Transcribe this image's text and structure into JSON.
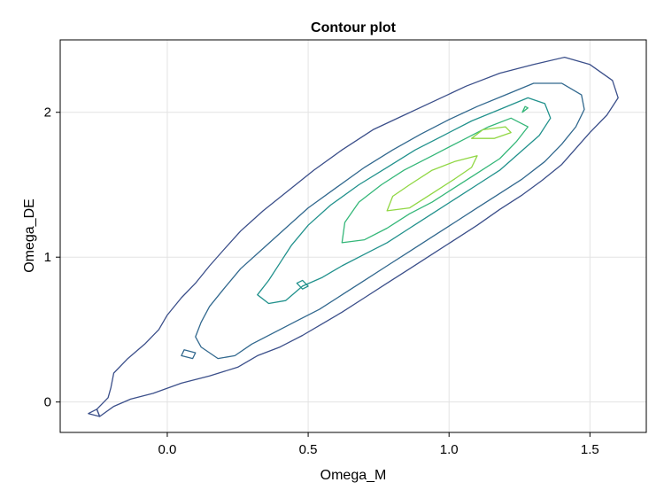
{
  "chart_data": {
    "type": "contour",
    "title": "Contour plot",
    "xlabel": "Omega_M",
    "ylabel": "Omega_DE",
    "xlim": [
      -0.38,
      1.7
    ],
    "ylim": [
      -0.21,
      2.5
    ],
    "xticks": [
      0.0,
      0.5,
      1.0,
      1.5
    ],
    "yticks": [
      0,
      1,
      2
    ],
    "xtick_labels": [
      "0.0",
      "0.5",
      "1.0",
      "1.5"
    ],
    "ytick_labels": [
      "0",
      "1",
      "2"
    ],
    "grid": true,
    "colors": [
      "#3b4f8a",
      "#31688e",
      "#21918c",
      "#35b779",
      "#90d743"
    ],
    "levels": [
      {
        "color": "#3b4f8a",
        "paths": [
          {
            "closed": true,
            "points": [
              [
                -0.24,
                -0.1
              ],
              [
                -0.19,
                -0.03
              ],
              [
                -0.13,
                0.02
              ],
              [
                -0.05,
                0.06
              ],
              [
                0.05,
                0.13
              ],
              [
                0.15,
                0.18
              ],
              [
                0.25,
                0.24
              ],
              [
                0.32,
                0.32
              ],
              [
                0.4,
                0.38
              ],
              [
                0.48,
                0.46
              ],
              [
                0.55,
                0.54
              ],
              [
                0.62,
                0.62
              ],
              [
                0.7,
                0.72
              ],
              [
                0.78,
                0.82
              ],
              [
                0.86,
                0.92
              ],
              [
                0.94,
                1.02
              ],
              [
                1.02,
                1.12
              ],
              [
                1.1,
                1.22
              ],
              [
                1.18,
                1.33
              ],
              [
                1.26,
                1.43
              ],
              [
                1.33,
                1.53
              ],
              [
                1.4,
                1.64
              ],
              [
                1.45,
                1.75
              ],
              [
                1.5,
                1.86
              ],
              [
                1.56,
                1.98
              ],
              [
                1.6,
                2.1
              ],
              [
                1.58,
                2.22
              ],
              [
                1.5,
                2.33
              ],
              [
                1.41,
                2.38
              ],
              [
                1.3,
                2.33
              ],
              [
                1.18,
                2.27
              ],
              [
                1.06,
                2.18
              ],
              [
                0.95,
                2.08
              ],
              [
                0.84,
                1.98
              ],
              [
                0.73,
                1.88
              ],
              [
                0.62,
                1.74
              ],
              [
                0.52,
                1.6
              ],
              [
                0.43,
                1.46
              ],
              [
                0.34,
                1.32
              ],
              [
                0.26,
                1.18
              ],
              [
                0.2,
                1.05
              ],
              [
                0.15,
                0.94
              ],
              [
                0.1,
                0.82
              ],
              [
                0.05,
                0.72
              ],
              [
                0.0,
                0.6
              ],
              [
                -0.03,
                0.5
              ],
              [
                -0.08,
                0.4
              ],
              [
                -0.14,
                0.3
              ],
              [
                -0.19,
                0.2
              ],
              [
                -0.2,
                0.1
              ],
              [
                -0.21,
                0.03
              ],
              [
                -0.25,
                -0.05
              ]
            ]
          },
          {
            "closed": true,
            "points": [
              [
                -0.28,
                -0.08
              ],
              [
                -0.25,
                -0.05
              ],
              [
                -0.24,
                -0.1
              ]
            ]
          }
        ]
      },
      {
        "color": "#31688e",
        "paths": [
          {
            "closed": true,
            "points": [
              [
                0.12,
                0.38
              ],
              [
                0.18,
                0.3
              ],
              [
                0.24,
                0.32
              ],
              [
                0.3,
                0.4
              ],
              [
                0.38,
                0.48
              ],
              [
                0.46,
                0.56
              ],
              [
                0.54,
                0.64
              ],
              [
                0.62,
                0.74
              ],
              [
                0.7,
                0.84
              ],
              [
                0.78,
                0.94
              ],
              [
                0.86,
                1.04
              ],
              [
                0.94,
                1.14
              ],
              [
                1.02,
                1.24
              ],
              [
                1.1,
                1.34
              ],
              [
                1.18,
                1.44
              ],
              [
                1.26,
                1.54
              ],
              [
                1.34,
                1.66
              ],
              [
                1.4,
                1.78
              ],
              [
                1.45,
                1.9
              ],
              [
                1.48,
                2.02
              ],
              [
                1.47,
                2.12
              ],
              [
                1.4,
                2.2
              ],
              [
                1.3,
                2.2
              ],
              [
                1.2,
                2.12
              ],
              [
                1.1,
                2.04
              ],
              [
                1.0,
                1.95
              ],
              [
                0.9,
                1.85
              ],
              [
                0.8,
                1.74
              ],
              [
                0.7,
                1.62
              ],
              [
                0.6,
                1.48
              ],
              [
                0.5,
                1.34
              ],
              [
                0.42,
                1.2
              ],
              [
                0.34,
                1.06
              ],
              [
                0.26,
                0.92
              ],
              [
                0.2,
                0.78
              ],
              [
                0.15,
                0.66
              ],
              [
                0.12,
                0.55
              ],
              [
                0.1,
                0.45
              ]
            ]
          },
          {
            "closed": true,
            "points": [
              [
                0.05,
                0.32
              ],
              [
                0.09,
                0.3
              ],
              [
                0.1,
                0.34
              ],
              [
                0.06,
                0.36
              ]
            ]
          }
        ]
      },
      {
        "color": "#21918c",
        "paths": [
          {
            "closed": true,
            "points": [
              [
                0.32,
                0.74
              ],
              [
                0.36,
                0.68
              ],
              [
                0.42,
                0.7
              ],
              [
                0.48,
                0.8
              ],
              [
                0.55,
                0.86
              ],
              [
                0.62,
                0.94
              ],
              [
                0.7,
                1.02
              ],
              [
                0.78,
                1.1
              ],
              [
                0.86,
                1.2
              ],
              [
                0.94,
                1.3
              ],
              [
                1.02,
                1.4
              ],
              [
                1.1,
                1.5
              ],
              [
                1.18,
                1.6
              ],
              [
                1.25,
                1.72
              ],
              [
                1.32,
                1.84
              ],
              [
                1.36,
                1.96
              ],
              [
                1.34,
                2.06
              ],
              [
                1.28,
                2.1
              ],
              [
                1.18,
                2.02
              ],
              [
                1.08,
                1.94
              ],
              [
                0.98,
                1.84
              ],
              [
                0.88,
                1.74
              ],
              [
                0.78,
                1.62
              ],
              [
                0.68,
                1.5
              ],
              [
                0.58,
                1.36
              ],
              [
                0.5,
                1.22
              ],
              [
                0.44,
                1.08
              ],
              [
                0.4,
                0.96
              ],
              [
                0.36,
                0.84
              ]
            ]
          },
          {
            "closed": true,
            "points": [
              [
                0.46,
                0.82
              ],
              [
                0.48,
                0.78
              ],
              [
                0.5,
                0.8
              ],
              [
                0.48,
                0.84
              ]
            ]
          }
        ]
      },
      {
        "color": "#35b779",
        "paths": [
          {
            "closed": true,
            "points": [
              [
                0.62,
                1.1
              ],
              [
                0.7,
                1.12
              ],
              [
                0.78,
                1.2
              ],
              [
                0.86,
                1.3
              ],
              [
                0.94,
                1.38
              ],
              [
                1.02,
                1.48
              ],
              [
                1.1,
                1.58
              ],
              [
                1.18,
                1.68
              ],
              [
                1.24,
                1.8
              ],
              [
                1.28,
                1.9
              ],
              [
                1.22,
                1.96
              ],
              [
                1.14,
                1.9
              ],
              [
                1.04,
                1.8
              ],
              [
                0.94,
                1.7
              ],
              [
                0.84,
                1.6
              ],
              [
                0.76,
                1.5
              ],
              [
                0.68,
                1.38
              ],
              [
                0.63,
                1.24
              ]
            ]
          },
          {
            "closed": true,
            "points": [
              [
                1.26,
                2.0
              ],
              [
                1.28,
                2.03
              ],
              [
                1.27,
                2.04
              ]
            ]
          }
        ]
      },
      {
        "color": "#90d743",
        "paths": [
          {
            "closed": true,
            "points": [
              [
                0.78,
                1.32
              ],
              [
                0.86,
                1.34
              ],
              [
                0.94,
                1.44
              ],
              [
                1.02,
                1.54
              ],
              [
                1.08,
                1.62
              ],
              [
                1.1,
                1.7
              ],
              [
                1.02,
                1.66
              ],
              [
                0.94,
                1.6
              ],
              [
                0.86,
                1.5
              ],
              [
                0.8,
                1.42
              ]
            ]
          },
          {
            "closed": true,
            "points": [
              [
                1.08,
                1.82
              ],
              [
                1.16,
                1.82
              ],
              [
                1.22,
                1.86
              ],
              [
                1.2,
                1.9
              ],
              [
                1.12,
                1.88
              ]
            ]
          }
        ]
      }
    ]
  }
}
